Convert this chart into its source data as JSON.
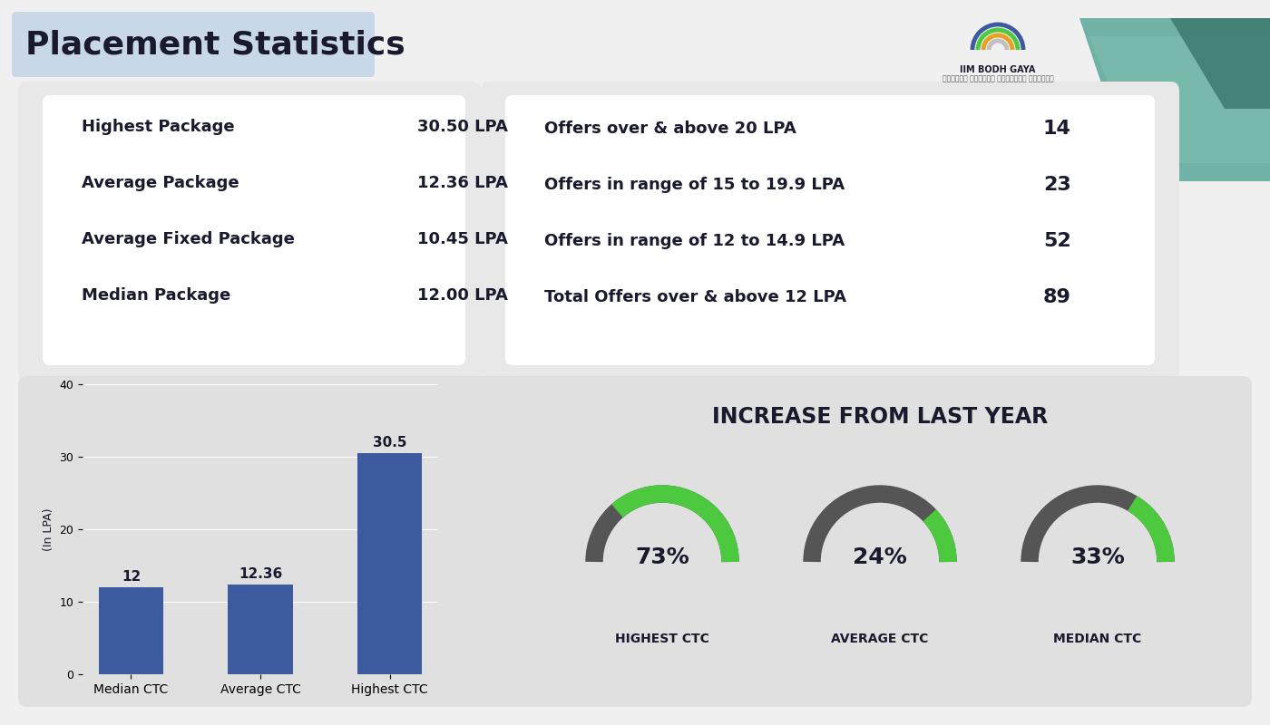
{
  "title": "Placement Statistics",
  "title_bg": "#c8d8e8",
  "bg_color": "#f0f0f0",
  "card_bg": "#ffffff",
  "stats_left": [
    {
      "label": "Highest Package",
      "value": "30.50 LPA"
    },
    {
      "label": "Average Package",
      "value": "12.36 LPA"
    },
    {
      "label": "Average Fixed Package",
      "value": "10.45 LPA"
    },
    {
      "label": "Median Package",
      "value": "12.00 LPA"
    }
  ],
  "stats_right": [
    {
      "label": "Offers over & above 20 LPA",
      "value": "14"
    },
    {
      "label": "Offers in range of 15 to 19.9 LPA",
      "value": "23"
    },
    {
      "label": "Offers in range of 12 to 14.9 LPA",
      "value": "52"
    },
    {
      "label": "Total Offers over & above 12 LPA",
      "value": "89"
    }
  ],
  "bar_categories": [
    "Median CTC",
    "Average CTC",
    "Highest CTC"
  ],
  "bar_values": [
    12,
    12.36,
    30.5
  ],
  "bar_labels": [
    "12",
    "12.36",
    "30.5"
  ],
  "bar_color": "#3d5a9e",
  "bar_ylabel": "(In LPA)",
  "bar_ylim": [
    0,
    40
  ],
  "bar_yticks": [
    0,
    10,
    20,
    30,
    40
  ],
  "increase_title": "INCREASE FROM LAST YEAR",
  "gauges": [
    {
      "label": "HIGHEST CTC",
      "value": 73,
      "text": "73%"
    },
    {
      "label": "AVERAGE CTC",
      "value": 24,
      "text": "24%"
    },
    {
      "label": "MEDIAN CTC",
      "value": 33,
      "text": "33%"
    }
  ],
  "gauge_green": "#4dc93f",
  "gauge_gray": "#555555",
  "text_color": "#1a1a2e",
  "diamond_color": "#b8d4e8"
}
